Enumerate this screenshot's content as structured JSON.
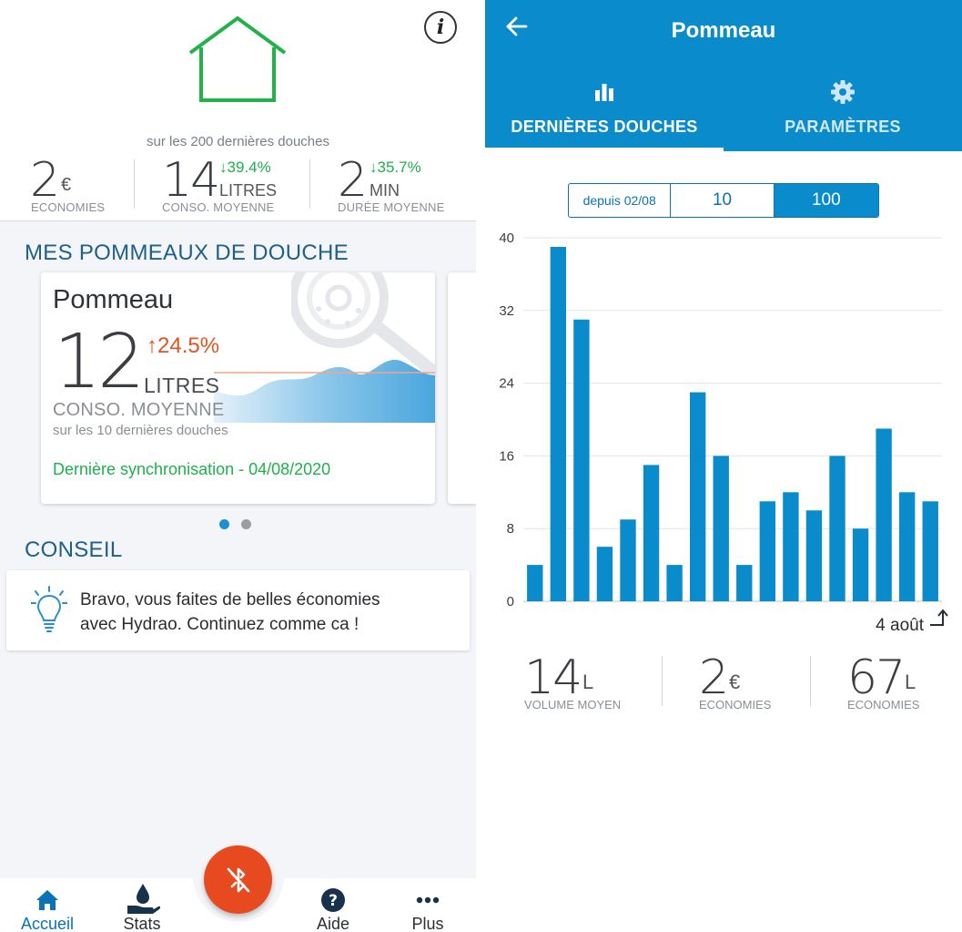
{
  "left": {
    "stats_caption": "sur les 200 dernières douches",
    "stats": [
      {
        "value": "2",
        "unit": "€",
        "delta": "",
        "label": "ECONOMIES"
      },
      {
        "value": "14",
        "unit": "LITRES",
        "delta": "39.4%",
        "label": "CONSO. MOYENNE"
      },
      {
        "value": "2",
        "unit": "MIN",
        "delta": "35.7%",
        "label": "DURÉE MOYENNE"
      }
    ],
    "section_pommeaux": "MES POMMEAUX DE DOUCHE",
    "card": {
      "name": "Pommeau",
      "value": "12",
      "delta": "24.5%",
      "unit": "LITRES",
      "label": "CONSO. MOYENNE",
      "sub": "sur les 10 dernières douches",
      "sync": "Dernière synchronisation - 04/08/2020"
    },
    "section_conseil": "CONSEIL",
    "conseil_line1": "Bravo, vous faites de belles économies",
    "conseil_line2": "avec Hydrao. Continuez comme ca !",
    "nav": [
      {
        "label": "Accueil",
        "icon": "home-icon",
        "active": true
      },
      {
        "label": "Stats",
        "icon": "water-hand-icon",
        "active": false
      },
      {
        "label": "Aide",
        "icon": "help-icon",
        "active": false
      },
      {
        "label": "Plus",
        "icon": "more-icon",
        "active": false
      }
    ],
    "colors": {
      "green": "#1db24a",
      "orange": "#e2531f",
      "blue_title": "#1f5f8b",
      "fab": "#e84a1f",
      "active_nav": "#0a72b5"
    }
  },
  "right": {
    "title": "Pommeau",
    "tabs": [
      {
        "label": "DERNIÈRES DOUCHES",
        "icon": "bar-chart-icon",
        "active": true
      },
      {
        "label": "PARAMÈTRES",
        "icon": "gear-icon",
        "active": false
      }
    ],
    "segments": [
      {
        "label": "depuis 02/08",
        "active": false
      },
      {
        "label": "10",
        "active": false
      },
      {
        "label": "100",
        "active": true
      }
    ],
    "chart_data": {
      "type": "bar",
      "values": [
        4,
        39,
        31,
        6,
        9,
        15,
        4,
        23,
        16,
        4,
        11,
        12,
        10,
        16,
        8,
        19,
        12,
        11
      ],
      "ylim": [
        0,
        40
      ],
      "yticks": [
        0,
        8,
        16,
        24,
        32,
        40
      ],
      "xlabel_last": "4 août",
      "grid": true,
      "bar_color": "#0a8bcc"
    },
    "stats": [
      {
        "value": "14",
        "unit": "L",
        "label": "VOLUME MOYEN"
      },
      {
        "value": "2",
        "unit": "€",
        "label": "ECONOMIES"
      },
      {
        "value": "67",
        "unit": "L",
        "label": "ECONOMIES"
      }
    ],
    "colors": {
      "appbar": "#0a8bcc"
    }
  }
}
